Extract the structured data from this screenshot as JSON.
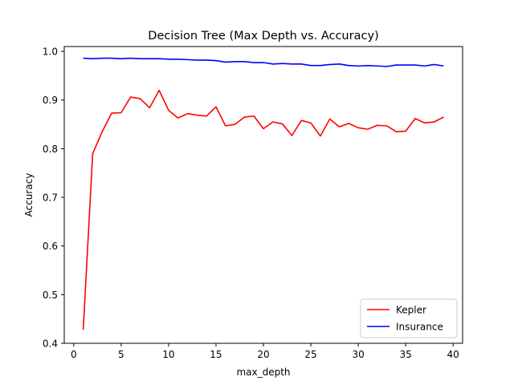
{
  "chart_data": {
    "type": "line",
    "title": "Decision Tree (Max Depth vs. Accuracy)",
    "xlabel": "max_depth",
    "ylabel": "Accuracy",
    "xlim": [
      -1,
      41
    ],
    "ylim": [
      0.4,
      1.01
    ],
    "xticks": [
      0,
      5,
      10,
      15,
      20,
      25,
      30,
      35,
      40
    ],
    "yticks": [
      0.4,
      0.5,
      0.6,
      0.7,
      0.8,
      0.9,
      1.0
    ],
    "ytick_labels": [
      "0.4",
      "0.5",
      "0.6",
      "0.7",
      "0.8",
      "0.9",
      "1.0"
    ],
    "grid": false,
    "legend_position": "lower-right",
    "x": [
      1,
      2,
      3,
      4,
      5,
      6,
      7,
      8,
      9,
      10,
      11,
      12,
      13,
      14,
      15,
      16,
      17,
      18,
      19,
      20,
      21,
      22,
      23,
      24,
      25,
      26,
      27,
      28,
      29,
      30,
      31,
      32,
      33,
      34,
      35,
      36,
      37,
      38,
      39
    ],
    "series": [
      {
        "name": "Kepler",
        "color": "#ff0000",
        "values": [
          0.428,
          0.79,
          0.835,
          0.873,
          0.874,
          0.906,
          0.903,
          0.884,
          0.92,
          0.879,
          0.863,
          0.872,
          0.869,
          0.867,
          0.886,
          0.847,
          0.85,
          0.865,
          0.867,
          0.841,
          0.855,
          0.851,
          0.827,
          0.858,
          0.853,
          0.826,
          0.861,
          0.845,
          0.852,
          0.843,
          0.84,
          0.848,
          0.847,
          0.835,
          0.836,
          0.862,
          0.853,
          0.855,
          0.865
        ]
      },
      {
        "name": "Insurance",
        "color": "#0000ff",
        "values": [
          0.986,
          0.985,
          0.986,
          0.986,
          0.985,
          0.986,
          0.985,
          0.985,
          0.985,
          0.984,
          0.984,
          0.983,
          0.982,
          0.982,
          0.981,
          0.978,
          0.979,
          0.979,
          0.977,
          0.977,
          0.974,
          0.975,
          0.974,
          0.974,
          0.971,
          0.971,
          0.973,
          0.974,
          0.971,
          0.97,
          0.971,
          0.97,
          0.969,
          0.972,
          0.972,
          0.972,
          0.97,
          0.973,
          0.97
        ]
      }
    ]
  }
}
